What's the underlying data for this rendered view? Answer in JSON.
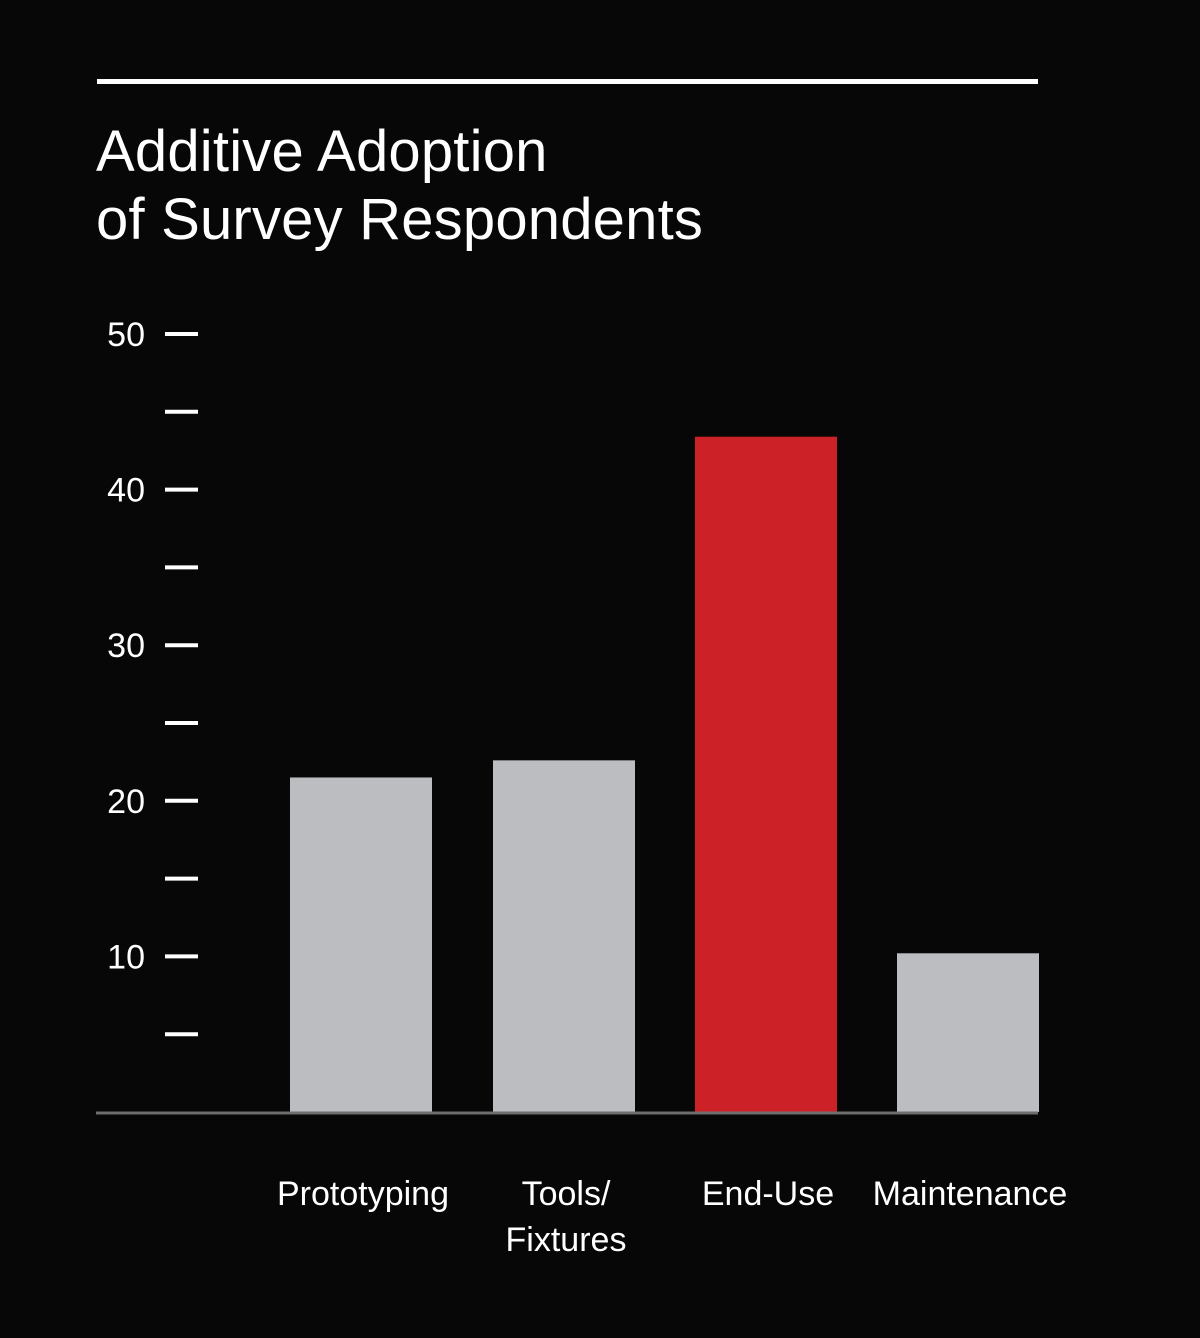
{
  "chart_data": {
    "type": "bar",
    "title_lines": [
      "Additive Adoption",
      "of Survey Respondents"
    ],
    "categories": [
      [
        "Prototyping"
      ],
      [
        "Tools/",
        "Fixtures"
      ],
      [
        "End-Use"
      ],
      [
        "Maintenance"
      ]
    ],
    "values": [
      21.5,
      22.6,
      43.4,
      10.2
    ],
    "ylim": [
      0,
      50
    ],
    "major_ticks": [
      10,
      20,
      30,
      40,
      50
    ],
    "minor_ticks": [
      5,
      15,
      25,
      35,
      45
    ],
    "xlabel": "",
    "ylabel": "",
    "grid": false,
    "legend": "none",
    "colors": {
      "background": "#070707",
      "default_bar": "#bcbdc0",
      "highlight_bar": "#cc2127",
      "axis": "#6e6e6e",
      "text": "#ffffff"
    },
    "highlight_index": 2
  }
}
